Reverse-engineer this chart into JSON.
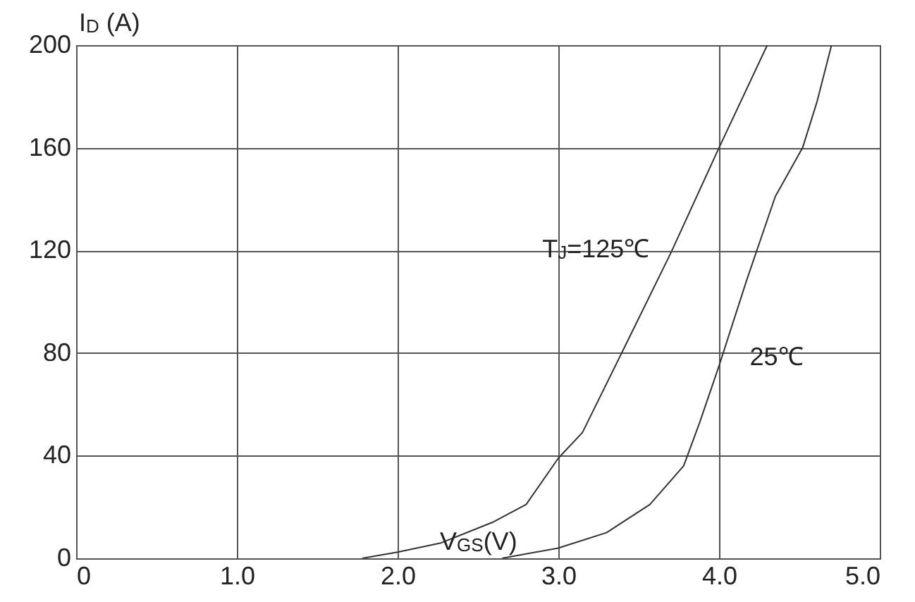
{
  "chart_data": {
    "type": "line",
    "xlabel": "V$_{GS}$(V)",
    "ylabel": "I$_{D}$ (A)",
    "xlim": [
      0,
      5
    ],
    "xticks": [
      0,
      {
        "value": 1,
        "label": "1.0"
      },
      {
        "value": 2,
        "label": "2.0"
      },
      {
        "value": 3,
        "label": "3.0"
      },
      {
        "value": 4,
        "label": "4.0"
      },
      {
        "value": 5,
        "label": "5.0"
      }
    ],
    "ylim": [
      0,
      200
    ],
    "yticks": [
      0,
      40,
      80,
      120,
      160,
      200
    ],
    "grid": true,
    "series": [
      {
        "name": "T$_{J}$=125℃",
        "color": "#333333",
        "x": [
          1.78,
          2.0,
          2.27,
          2.59,
          2.8,
          3.0,
          3.15,
          3.41,
          3.7,
          4.0,
          4.3
        ],
        "values": [
          0,
          2.4,
          6,
          14,
          21,
          39,
          49,
          82,
          119,
          160,
          200
        ]
      },
      {
        "name": "25℃",
        "color": "#333333",
        "x": [
          2.65,
          3.0,
          3.3,
          3.57,
          3.78,
          3.88,
          4.0,
          4.17,
          4.35,
          4.52,
          4.61,
          4.7
        ],
        "values": [
          0,
          4,
          10,
          21,
          36,
          53,
          75,
          108,
          141,
          160,
          178,
          200
        ]
      }
    ]
  }
}
